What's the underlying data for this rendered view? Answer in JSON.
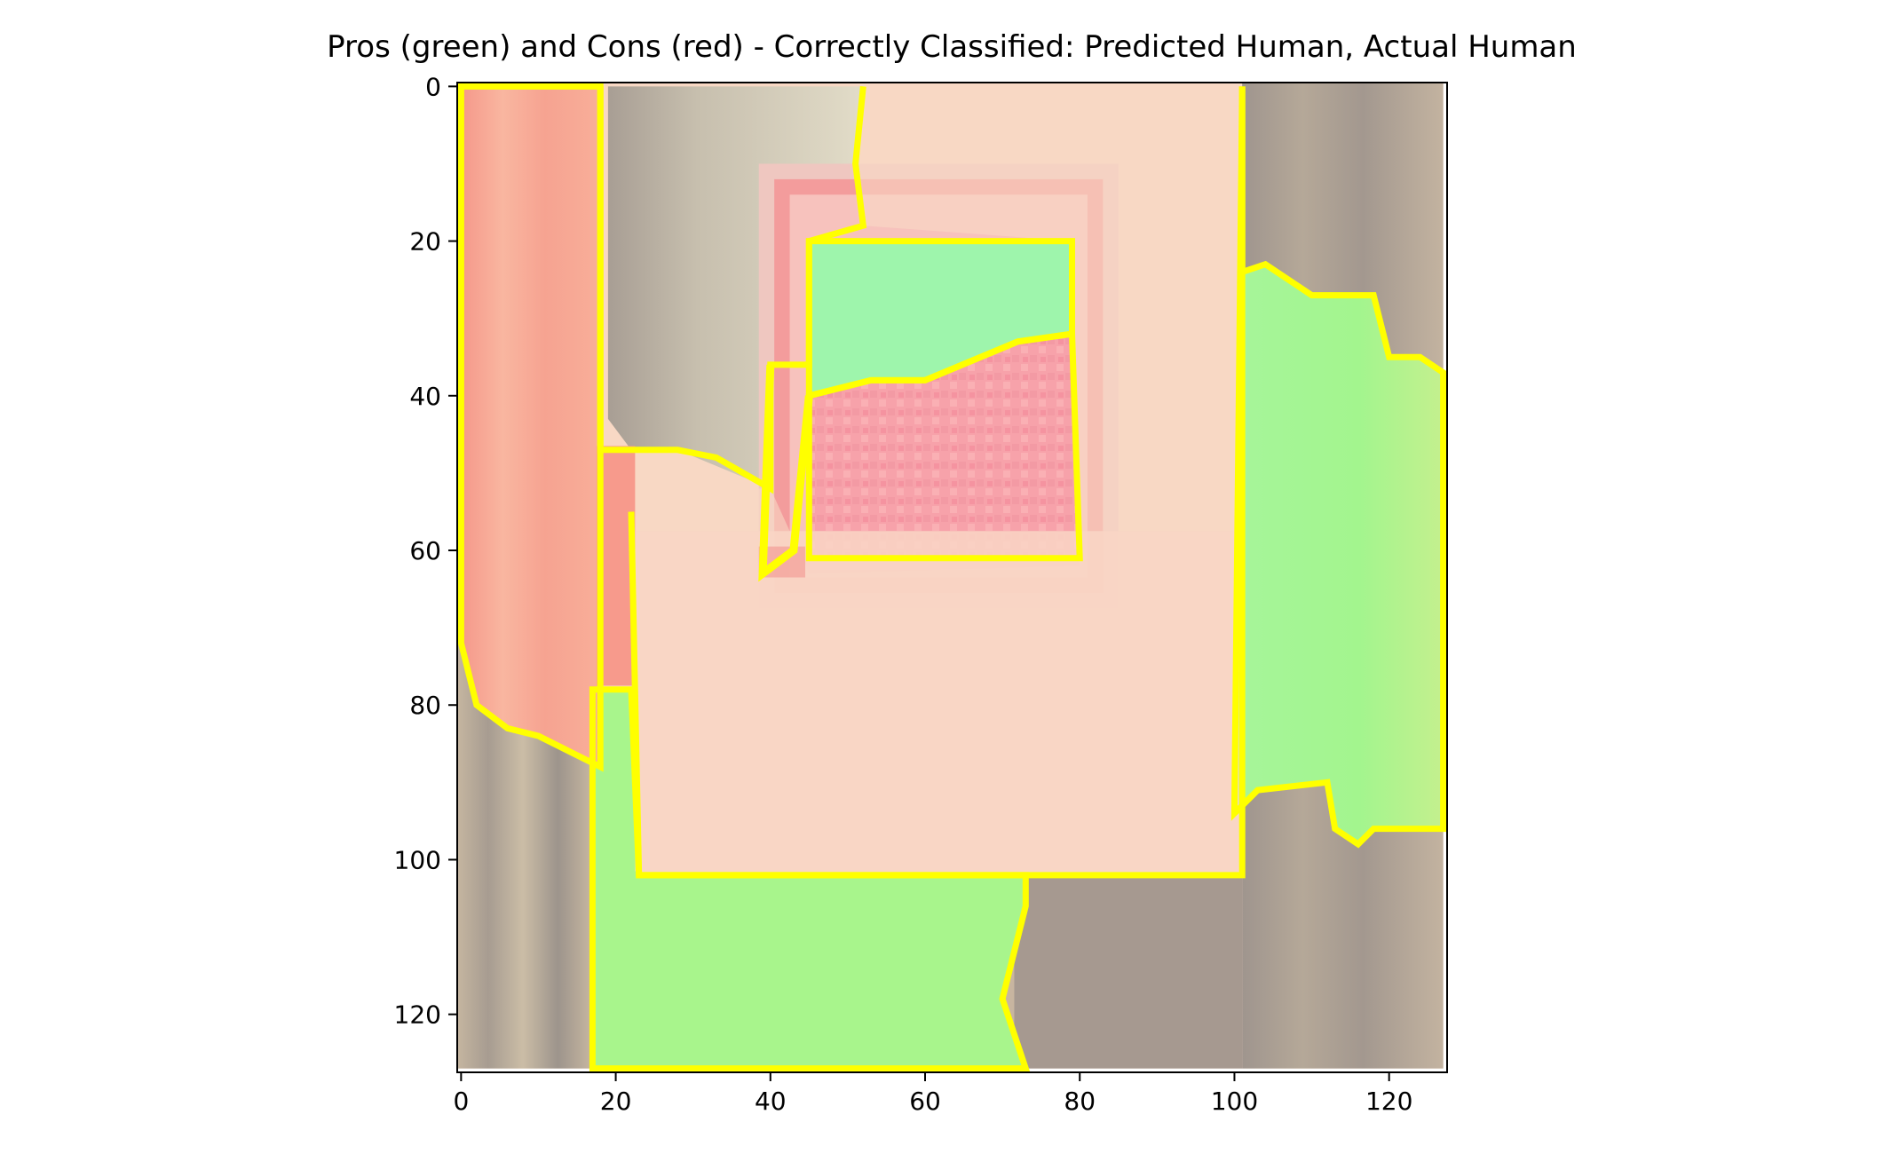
{
  "chart_data": {
    "type": "heatmap",
    "title": "Pros (green) and Cons (red) - Correctly Classified: Predicted Human, Actual Human",
    "xlabel": "",
    "ylabel": "",
    "xlim": [
      -0.5,
      127.5
    ],
    "ylim": [
      127.5,
      -0.5
    ],
    "x_ticks": [
      0,
      20,
      40,
      60,
      80,
      100,
      120
    ],
    "y_ticks": [
      0,
      20,
      40,
      60,
      80,
      100,
      120
    ],
    "grid": false,
    "image_size": [
      128,
      128
    ],
    "boundary_color": "#ffff00",
    "colors": {
      "pro_overlay": "#a8f58c",
      "con_overlay": "#f7a08c",
      "wall": "#f8d8c4",
      "door_dark": "#a39890",
      "door_light": "#c9b9a2",
      "frame_con": "#f39c9c",
      "picture_top": "#9ef5ac",
      "picture_bottom": "#f7a4ac"
    },
    "regions": [
      {
        "label": "pro",
        "name": "right-upper-door",
        "polygon": [
          [
            101,
            0
          ],
          [
            101,
            24
          ],
          [
            104,
            23
          ],
          [
            110,
            27
          ],
          [
            118,
            27
          ],
          [
            120,
            35
          ],
          [
            124,
            35
          ],
          [
            127,
            37
          ],
          [
            127,
            96
          ],
          [
            118,
            96
          ],
          [
            116,
            98
          ],
          [
            113,
            96
          ],
          [
            112,
            90
          ],
          [
            103,
            91
          ],
          [
            100,
            94
          ],
          [
            101,
            0
          ]
        ]
      },
      {
        "label": "pro",
        "name": "bottom-floor",
        "polygon": [
          [
            17,
            127
          ],
          [
            17,
            78
          ],
          [
            22,
            78
          ],
          [
            23,
            102
          ],
          [
            73,
            102
          ],
          [
            73,
            106
          ],
          [
            70,
            118
          ],
          [
            73,
            127
          ]
        ]
      },
      {
        "label": "pro",
        "name": "picture-upper",
        "polygon": [
          [
            45,
            20
          ],
          [
            79,
            20
          ],
          [
            79,
            32
          ],
          [
            72,
            33
          ],
          [
            60,
            38
          ],
          [
            53,
            38
          ],
          [
            45,
            40
          ]
        ]
      },
      {
        "label": "con",
        "name": "left-door-strip",
        "polygon": [
          [
            0,
            0
          ],
          [
            18,
            0
          ],
          [
            18,
            88
          ],
          [
            14,
            86
          ],
          [
            10,
            84
          ],
          [
            6,
            83
          ],
          [
            2,
            80
          ],
          [
            0,
            72
          ]
        ]
      },
      {
        "label": "con",
        "name": "wall-center",
        "polygon": [
          [
            18,
            0
          ],
          [
            52,
            0
          ],
          [
            51,
            10
          ],
          [
            52,
            18
          ],
          [
            79,
            20
          ],
          [
            80,
            62
          ],
          [
            45,
            63
          ],
          [
            40,
            52
          ],
          [
            28,
            52
          ],
          [
            22,
            58
          ],
          [
            23,
            102
          ],
          [
            101,
            102
          ],
          [
            101,
            0
          ]
        ]
      },
      {
        "label": "con",
        "name": "picture-lower",
        "polygon": [
          [
            45,
            40
          ],
          [
            53,
            38
          ],
          [
            60,
            38
          ],
          [
            72,
            33
          ],
          [
            79,
            32
          ],
          [
            80,
            61
          ],
          [
            45,
            61
          ]
        ]
      }
    ]
  }
}
